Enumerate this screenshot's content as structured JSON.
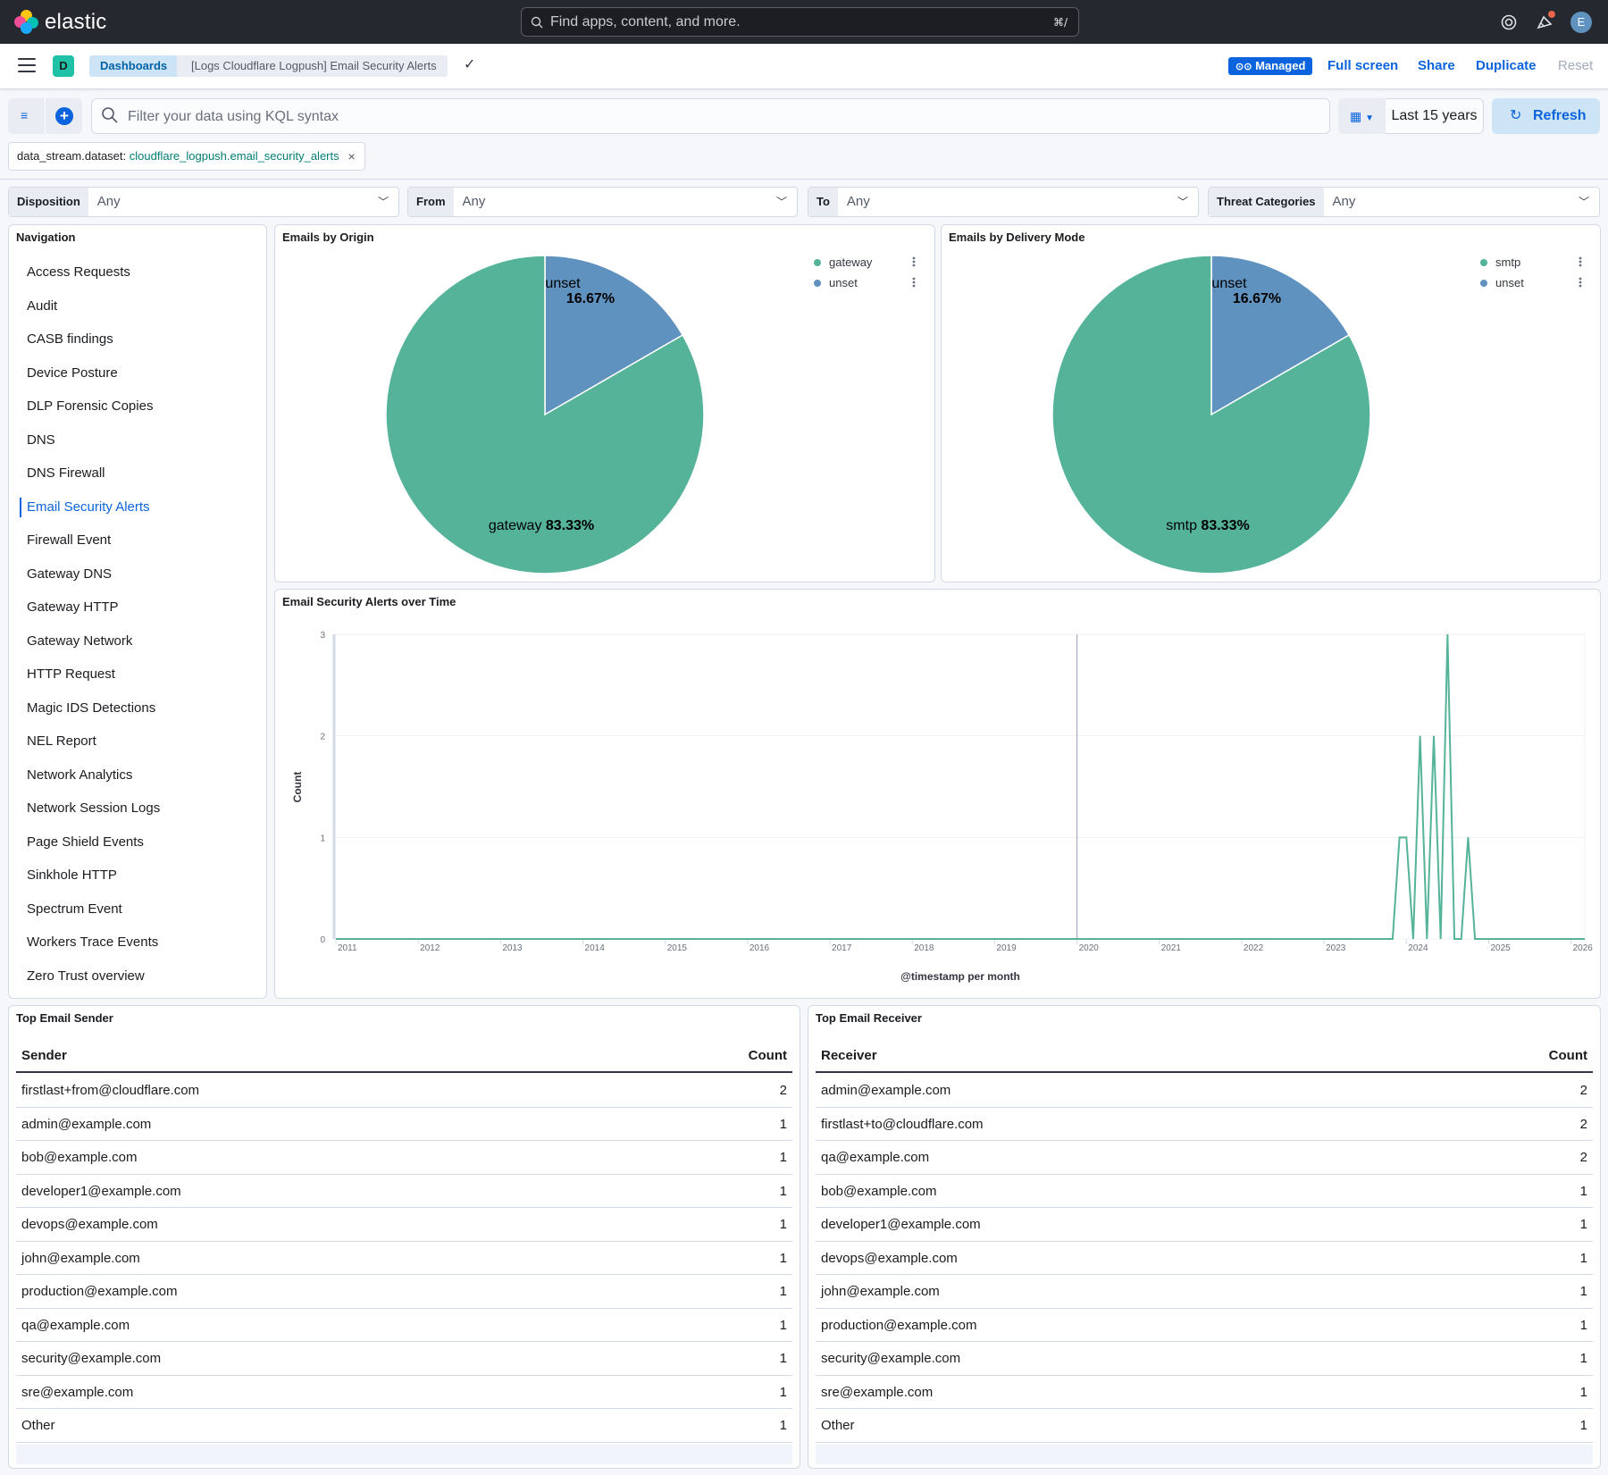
{
  "header": {
    "brand": "elastic",
    "search_placeholder": "Find apps, content, and more.",
    "search_shortcut": "⌘/",
    "avatar_initial": "E",
    "icons": [
      "help-icon",
      "news-icon",
      "avatar"
    ]
  },
  "subbar": {
    "space_initial": "D",
    "breadcrumbs": [
      "Dashboards",
      "[Logs Cloudflare Logpush] Email Security Alerts"
    ],
    "managed_label": "Managed",
    "actions": [
      "Full screen",
      "Share",
      "Duplicate",
      "Reset"
    ]
  },
  "query": {
    "placeholder": "Filter your data using KQL syntax",
    "time_range": "Last 15 years",
    "refresh_label": "Refresh"
  },
  "filter_pill": {
    "field": "data_stream.dataset:",
    "value": "cloudflare_logpush.email_security_alerts"
  },
  "controls": [
    {
      "label": "Disposition",
      "value": "Any"
    },
    {
      "label": "From",
      "value": "Any"
    },
    {
      "label": "To",
      "value": "Any"
    },
    {
      "label": "Threat Categories",
      "value": "Any"
    }
  ],
  "navigation": {
    "title": "Navigation",
    "active_index": 7,
    "items": [
      "Access Requests",
      "Audit",
      "CASB findings",
      "Device Posture",
      "DLP Forensic Copies",
      "DNS",
      "DNS Firewall",
      "Email Security Alerts",
      "Firewall Event",
      "Gateway DNS",
      "Gateway HTTP",
      "Gateway Network",
      "HTTP Request",
      "Magic IDS Detections",
      "NEL Report",
      "Network Analytics",
      "Network Session Logs",
      "Page Shield Events",
      "Sinkhole HTTP",
      "Spectrum Event",
      "Workers Trace Events",
      "Zero Trust overview"
    ]
  },
  "colors": {
    "green": "#54b399",
    "blue": "#6092c0",
    "accent": "#0b64dd"
  },
  "chart_data": [
    {
      "type": "pie",
      "title": "Emails by Origin",
      "slices": [
        {
          "label": "gateway",
          "value": 83.33,
          "pct_label": "83.33%",
          "color": "#54b399"
        },
        {
          "label": "unset",
          "value": 16.67,
          "pct_label": "16.67%",
          "color": "#6092c0"
        }
      ],
      "legend_placement": "top-right"
    },
    {
      "type": "pie",
      "title": "Emails by Delivery Mode",
      "slices": [
        {
          "label": "smtp",
          "value": 83.33,
          "pct_label": "83.33%",
          "color": "#54b399"
        },
        {
          "label": "unset",
          "value": 16.67,
          "pct_label": "16.67%",
          "color": "#6092c0"
        }
      ],
      "legend_placement": "top-right"
    },
    {
      "type": "line",
      "title": "Email Security Alerts over Time",
      "xlabel": "@timestamp per month",
      "ylabel": "Count",
      "x_ticks": [
        "2011",
        "2012",
        "2013",
        "2014",
        "2015",
        "2016",
        "2017",
        "2018",
        "2019",
        "2020",
        "2021",
        "2022",
        "2023",
        "2024",
        "2025",
        "2026"
      ],
      "y_ticks": [
        0,
        1,
        2,
        3
      ],
      "ylim": [
        0,
        3
      ],
      "xlim": [
        "2011-01",
        "2026-03"
      ],
      "grid": true,
      "color": "#54b399",
      "points": [
        {
          "x": "2011-01",
          "y": 0
        },
        {
          "x": "2023-11",
          "y": 0
        },
        {
          "x": "2023-12",
          "y": 1
        },
        {
          "x": "2024-01",
          "y": 1
        },
        {
          "x": "2024-02",
          "y": 0
        },
        {
          "x": "2024-03",
          "y": 2
        },
        {
          "x": "2024-04",
          "y": 0
        },
        {
          "x": "2024-05",
          "y": 2
        },
        {
          "x": "2024-06",
          "y": 0
        },
        {
          "x": "2024-07",
          "y": 3
        },
        {
          "x": "2024-08",
          "y": 0
        },
        {
          "x": "2024-09",
          "y": 0
        },
        {
          "x": "2024-10",
          "y": 1
        },
        {
          "x": "2024-11",
          "y": 0
        },
        {
          "x": "2026-03",
          "y": 0
        }
      ]
    }
  ],
  "top_sender": {
    "title": "Top Email Sender",
    "col1": "Sender",
    "col2": "Count",
    "rows": [
      [
        "firstlast+from@cloudflare.com",
        "2"
      ],
      [
        "admin@example.com",
        "1"
      ],
      [
        "bob@example.com",
        "1"
      ],
      [
        "developer1@example.com",
        "1"
      ],
      [
        "devops@example.com",
        "1"
      ],
      [
        "john@example.com",
        "1"
      ],
      [
        "production@example.com",
        "1"
      ],
      [
        "qa@example.com",
        "1"
      ],
      [
        "security@example.com",
        "1"
      ],
      [
        "sre@example.com",
        "1"
      ],
      [
        "Other",
        "1"
      ]
    ]
  },
  "top_receiver": {
    "title": "Top Email Receiver",
    "col1": "Receiver",
    "col2": "Count",
    "rows": [
      [
        "admin@example.com",
        "2"
      ],
      [
        "firstlast+to@cloudflare.com",
        "2"
      ],
      [
        "qa@example.com",
        "2"
      ],
      [
        "bob@example.com",
        "1"
      ],
      [
        "developer1@example.com",
        "1"
      ],
      [
        "devops@example.com",
        "1"
      ],
      [
        "john@example.com",
        "1"
      ],
      [
        "production@example.com",
        "1"
      ],
      [
        "security@example.com",
        "1"
      ],
      [
        "sre@example.com",
        "1"
      ],
      [
        "Other",
        "1"
      ]
    ]
  }
}
